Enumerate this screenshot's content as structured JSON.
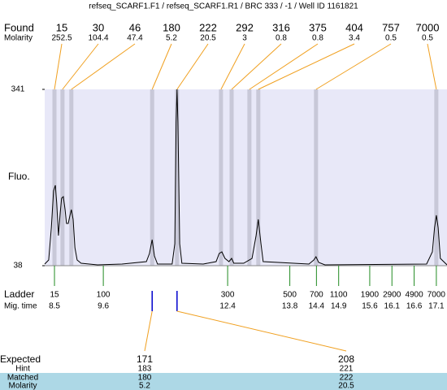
{
  "chart_data": {
    "type": "electropherogram",
    "title": "refseq_SCARF1.F1 / refseq_SCARF1.R1 / BRC 333 / -1 / Well ID 1161821",
    "ylabel": "Fluo.",
    "ylim": [
      38,
      341
    ],
    "yticks": [
      38,
      341
    ],
    "xlim": [
      8.28,
      17.34
    ],
    "color": "#000000",
    "band_color": "#c8c8d8",
    "plot_background": "#e8e8f8",
    "found": {
      "label": "Found",
      "molarity_label": "Molarity",
      "sizes": [
        15,
        30,
        46,
        180,
        222,
        292,
        316,
        375,
        404,
        757,
        7000
      ],
      "molarity": [
        252.5,
        104.4,
        47.4,
        5.2,
        20.5,
        3,
        0.8,
        0.8,
        3.4,
        0.5,
        0.5
      ],
      "times": [
        8.5,
        8.68,
        8.88,
        10.7,
        11.26,
        12.25,
        12.49,
        12.89,
        13.09,
        14.39,
        17.1
      ]
    },
    "ladder": {
      "label": "Ladder",
      "time_label": "Mig. time",
      "sizes": [
        15,
        100,
        300,
        500,
        700,
        1100,
        1900,
        2900,
        4900,
        7000
      ],
      "times": [
        8.5,
        9.6,
        12.4,
        13.8,
        14.4,
        14.9,
        15.6,
        16.1,
        16.6,
        17.1
      ]
    },
    "expected": {
      "labels": [
        "Expected",
        "Hint",
        "Matched",
        "Molarity"
      ],
      "rows": [
        {
          "expected": 171,
          "hint": 183,
          "matched": 180,
          "molarity": 5.2
        },
        {
          "expected": 208,
          "hint": 221,
          "matched": 222,
          "molarity": 20.5
        }
      ]
    },
    "x": [
      8.28,
      8.37,
      8.43,
      8.48,
      8.52,
      8.55,
      8.59,
      8.63,
      8.66,
      8.7,
      8.74,
      8.77,
      8.81,
      8.85,
      8.88,
      8.92,
      8.96,
      9.01,
      9.1,
      9.47,
      10.02,
      10.57,
      10.64,
      10.7,
      10.75,
      10.82,
      11.15,
      11.21,
      11.24,
      11.26,
      11.28,
      11.32,
      11.37,
      11.85,
      12.14,
      12.21,
      12.27,
      12.34,
      12.43,
      12.49,
      12.54,
      12.76,
      12.95,
      13.04,
      13.09,
      13.15,
      13.2,
      14.23,
      14.34,
      14.39,
      14.45,
      14.59,
      16.88,
      17.01,
      17.06,
      17.1,
      17.14,
      17.19,
      17.34
    ],
    "values": [
      40.8,
      47.8,
      103.6,
      166.5,
      176.2,
      145.5,
      89.7,
      128.8,
      153.9,
      156.7,
      134.3,
      110.6,
      110.6,
      124.6,
      134.3,
      117.6,
      68.7,
      47.8,
      42.2,
      39.4,
      40.8,
      45.0,
      58.9,
      82.7,
      54.8,
      40.8,
      40.8,
      75.7,
      285.1,
      341.0,
      285.1,
      75.7,
      42.2,
      40.8,
      45.0,
      58.9,
      61.7,
      50.6,
      45.0,
      50.6,
      42.2,
      42.2,
      50.6,
      89.7,
      117.6,
      75.7,
      45.0,
      40.8,
      47.8,
      53.4,
      43.6,
      39.4,
      40.8,
      61.7,
      103.6,
      124.6,
      103.6,
      50.6,
      39.4
    ]
  }
}
